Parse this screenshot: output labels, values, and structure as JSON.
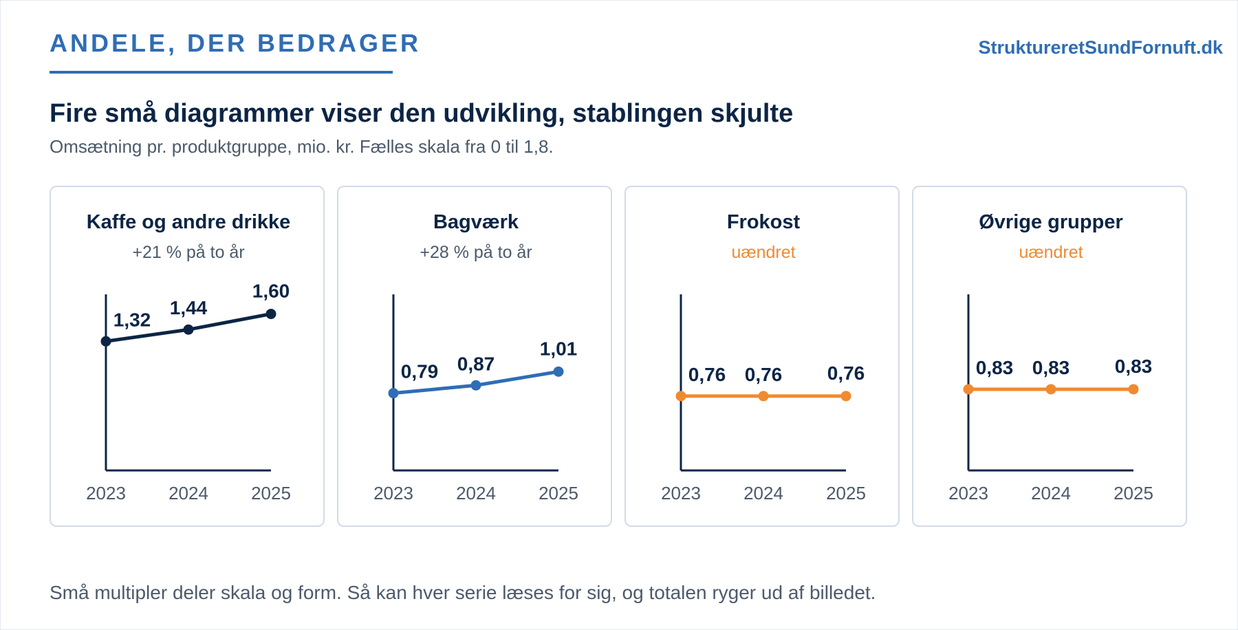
{
  "header": {
    "kicker": "ANDELE, DER BEDRAGER",
    "brand": "StruktureretSundFornuft.dk",
    "title": "Fire små diagrammer viser den udvikling, stablingen skjulte",
    "subtitle": "Omsætning pr. produktgruppe, mio. kr. Fælles skala fra 0 til 1,8."
  },
  "footer": {
    "note": "Små multipler deler skala og form. Så kan hver serie læses for sig, og totalen ryger ud af billedet."
  },
  "colors": {
    "navy": "#0c2545",
    "blue": "#2f6db5",
    "orange": "#f08a2f",
    "axis": "#0c2545",
    "muted": "#4c5a6b"
  },
  "chart_data": [
    {
      "type": "line",
      "title": "Kaffe og andre drikke",
      "subtitle": "+21 % på to år",
      "x": [
        "2023",
        "2024",
        "2025"
      ],
      "values": [
        1.32,
        1.44,
        1.6
      ],
      "labels": [
        "1,32",
        "1,44",
        "1,60"
      ],
      "ylim": [
        0,
        1.8
      ],
      "color": "#0c2545",
      "subtitle_color": "#4c5a6b"
    },
    {
      "type": "line",
      "title": "Bagværk",
      "subtitle": "+28 % på to år",
      "x": [
        "2023",
        "2024",
        "2025"
      ],
      "values": [
        0.79,
        0.87,
        1.01
      ],
      "labels": [
        "0,79",
        "0,87",
        "1,01"
      ],
      "ylim": [
        0,
        1.8
      ],
      "color": "#2f6db5",
      "subtitle_color": "#4c5a6b"
    },
    {
      "type": "line",
      "title": "Frokost",
      "subtitle": "uændret",
      "x": [
        "2023",
        "2024",
        "2025"
      ],
      "values": [
        0.76,
        0.76,
        0.76
      ],
      "labels": [
        "0,76",
        "0,76",
        "0,76"
      ],
      "ylim": [
        0,
        1.8
      ],
      "color": "#f08a2f",
      "subtitle_color": "#f08a2f"
    },
    {
      "type": "line",
      "title": "Øvrige grupper",
      "subtitle": "uændret",
      "x": [
        "2023",
        "2024",
        "2025"
      ],
      "values": [
        0.83,
        0.83,
        0.83
      ],
      "labels": [
        "0,83",
        "0,83",
        "0,83"
      ],
      "ylim": [
        0,
        1.8
      ],
      "color": "#f08a2f",
      "subtitle_color": "#f08a2f"
    }
  ]
}
